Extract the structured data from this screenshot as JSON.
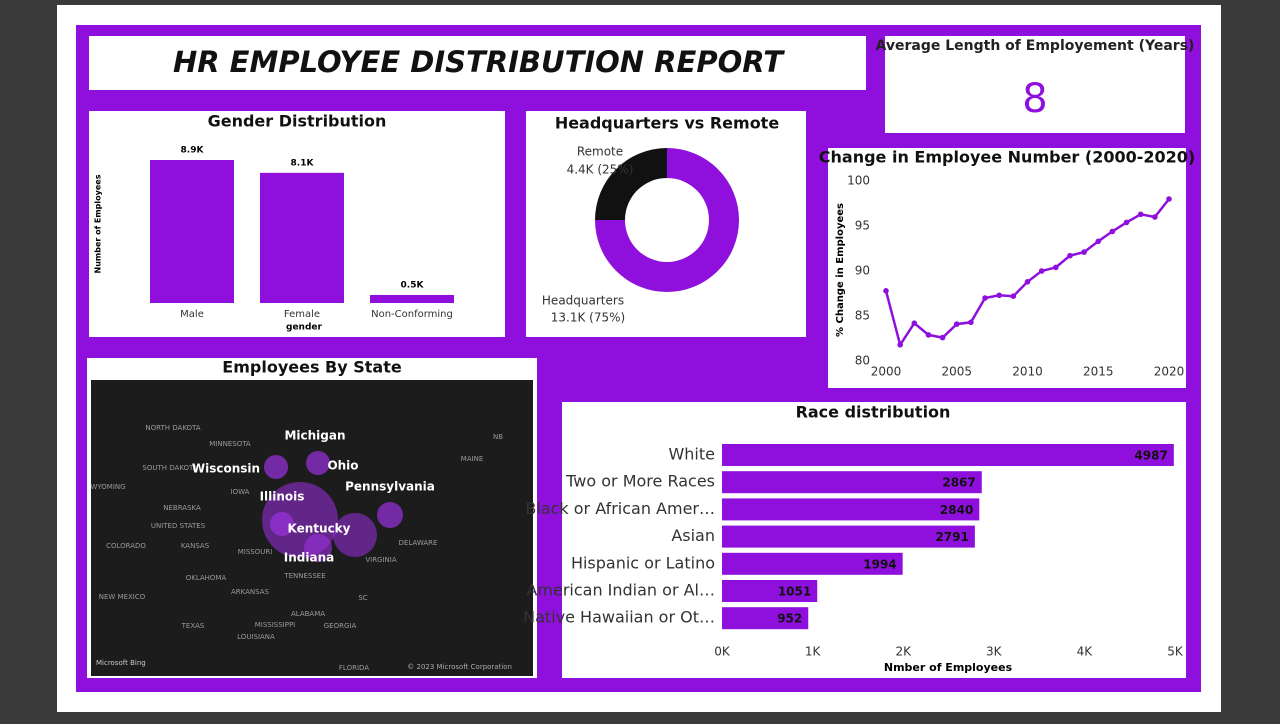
{
  "header": {
    "title": "HR EMPLOYEE DISTRIBUTION REPORT"
  },
  "kpi": {
    "label": "Average Length of Employement (Years)",
    "value": "8"
  },
  "map": {
    "title": "Employees By State",
    "states": [
      "Michigan",
      "Ohio",
      "Wisconsin",
      "Illinois",
      "Pennsylvania",
      "Kentucky",
      "Indiana"
    ],
    "base_labels": [
      "NORTH DAKOTA",
      "MINNESOTA",
      "SOUTH DAKOTA",
      "IOWA",
      "NEBRASKA",
      "KANSAS",
      "MISSOURI",
      "COLORADO",
      "OKLAHOMA",
      "ARKANSAS",
      "NEW MEXICO",
      "TEXAS",
      "MISSISSIPPI",
      "ALABAMA",
      "GEORGIA",
      "LOUISIANA",
      "TENNESSEE",
      "VIRGINIA",
      "DELAWARE",
      "MAINE",
      "NB",
      "SC",
      "FLORIDA",
      "WYOMING",
      "UNITED STATES"
    ],
    "provider": "Microsoft Bing",
    "copyright": "© 2023 Microsoft Corporation"
  },
  "chart_data": [
    {
      "type": "bar",
      "title": "Gender Distribution",
      "y_label": "Number of Employees",
      "x_label": "gender",
      "categories": [
        "Male",
        "Female",
        "Non-Conforming"
      ],
      "values": [
        8900,
        8100,
        500
      ],
      "value_labels": [
        "8.9K",
        "8.1K",
        "0.5K"
      ],
      "color": "#8f0fdd"
    },
    {
      "type": "donut",
      "title": "Headquarters vs Remote",
      "categories": [
        "Remote",
        "Headquarters"
      ],
      "values": [
        25,
        75
      ],
      "value_labels": [
        "4.4K (25%)",
        "13.1K (75%)"
      ],
      "colors": [
        "#111111",
        "#8f0fdd"
      ]
    },
    {
      "type": "line",
      "title": "Change in Employee Number (2000-2020)",
      "y_label": "% Change in Employees",
      "x": [
        2000,
        2001,
        2002,
        2003,
        2004,
        2005,
        2006,
        2007,
        2008,
        2009,
        2010,
        2011,
        2012,
        2013,
        2014,
        2015,
        2016,
        2017,
        2018,
        2019,
        2020
      ],
      "values": [
        87.8,
        81.8,
        84.2,
        82.9,
        82.6,
        84.1,
        84.3,
        87.0,
        87.3,
        87.2,
        88.8,
        90.0,
        90.4,
        91.7,
        92.1,
        93.3,
        94.4,
        95.4,
        96.3,
        96.0,
        98.0
      ],
      "color": "#8f0fdd",
      "xlim": [
        2000,
        2020
      ],
      "xticks": [
        2000,
        2005,
        2010,
        2015,
        2020
      ],
      "ylim": [
        80,
        100
      ],
      "yticks": [
        80,
        85,
        90,
        95,
        100
      ]
    },
    {
      "type": "hbar",
      "title": "Race distribution",
      "x_label": "Nmber of Employees",
      "categories": [
        "White",
        "Two or More Races",
        "Black or African Amer…",
        "Asian",
        "Hispanic or Latino",
        "American Indian or Al…",
        "Native Hawaiian or Ot…"
      ],
      "values": [
        4987,
        2867,
        2840,
        2791,
        1994,
        1051,
        952
      ],
      "color": "#8f0fdd",
      "xlim": [
        0,
        5000
      ],
      "xticks": [
        {
          "value": 0,
          "label": "0K"
        },
        {
          "value": 1000,
          "label": "1K"
        },
        {
          "value": 2000,
          "label": "2K"
        },
        {
          "value": 3000,
          "label": "3K"
        },
        {
          "value": 4000,
          "label": "4K"
        },
        {
          "value": 5000,
          "label": "5K"
        }
      ]
    }
  ]
}
